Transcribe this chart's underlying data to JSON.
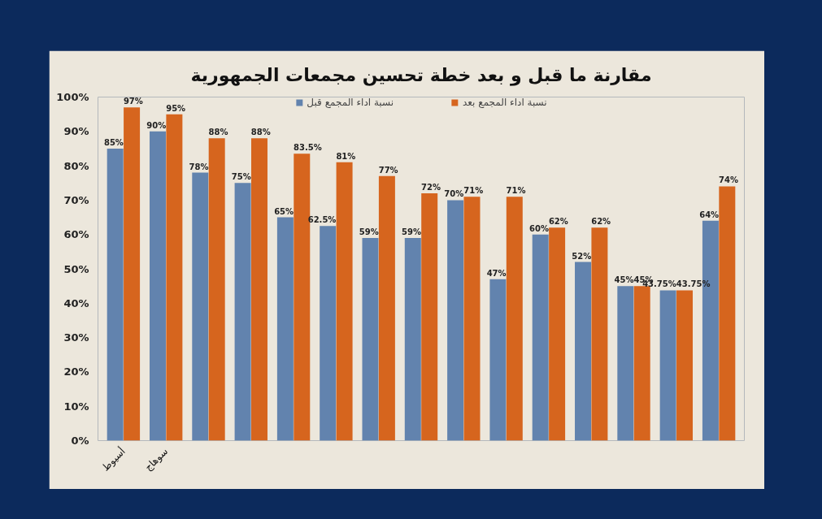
{
  "chart_data": {
    "type": "bar",
    "title": "مقارنة ما قبل و بعد خطة تحسين مجمعات الجمهورية",
    "categories": [
      "أسيوط",
      "سوهاج",
      null,
      null,
      null,
      null,
      null,
      null,
      null,
      null,
      null,
      null,
      null,
      null,
      null
    ],
    "series": [
      {
        "name": "نسبة اداء المجمع قبل",
        "color": "#6283ae",
        "values": [
          85,
          90,
          78,
          75,
          65,
          62.5,
          59,
          59,
          70,
          47,
          60,
          52,
          45,
          43.75,
          64
        ],
        "value_labels": [
          "85%",
          "90%",
          "78%",
          "75%",
          "65%",
          "62.5%",
          "59%",
          "59%",
          "70%",
          "47%",
          "60%",
          "52%",
          "45%",
          "43.75%",
          "64%"
        ]
      },
      {
        "name": "نسبة اداء المجمع بعد",
        "color": "#d6651e",
        "values": [
          97,
          95,
          88,
          88,
          83.5,
          81,
          77,
          72,
          71,
          71,
          62,
          62,
          45,
          43.75,
          74
        ],
        "value_labels": [
          "97%",
          "95%",
          "88%",
          "88%",
          "83.5%",
          "81%",
          "77%",
          "72%",
          "71%",
          "71%",
          "62%",
          "62%",
          "45%",
          "43.75%",
          "74%"
        ]
      }
    ],
    "ylim": [
      0,
      100
    ],
    "yticks": [
      {
        "value": 0,
        "label": "0%"
      },
      {
        "value": 10,
        "label": "10%"
      },
      {
        "value": 20,
        "label": "20%"
      },
      {
        "value": 30,
        "label": "30%"
      },
      {
        "value": 40,
        "label": "40%"
      },
      {
        "value": 50,
        "label": "50%"
      },
      {
        "value": 60,
        "label": "60%"
      },
      {
        "value": 70,
        "label": "70%"
      },
      {
        "value": 80,
        "label": "80%"
      },
      {
        "value": 90,
        "label": "90%"
      },
      {
        "value": 100,
        "label": "100%"
      }
    ],
    "legend": "top"
  }
}
